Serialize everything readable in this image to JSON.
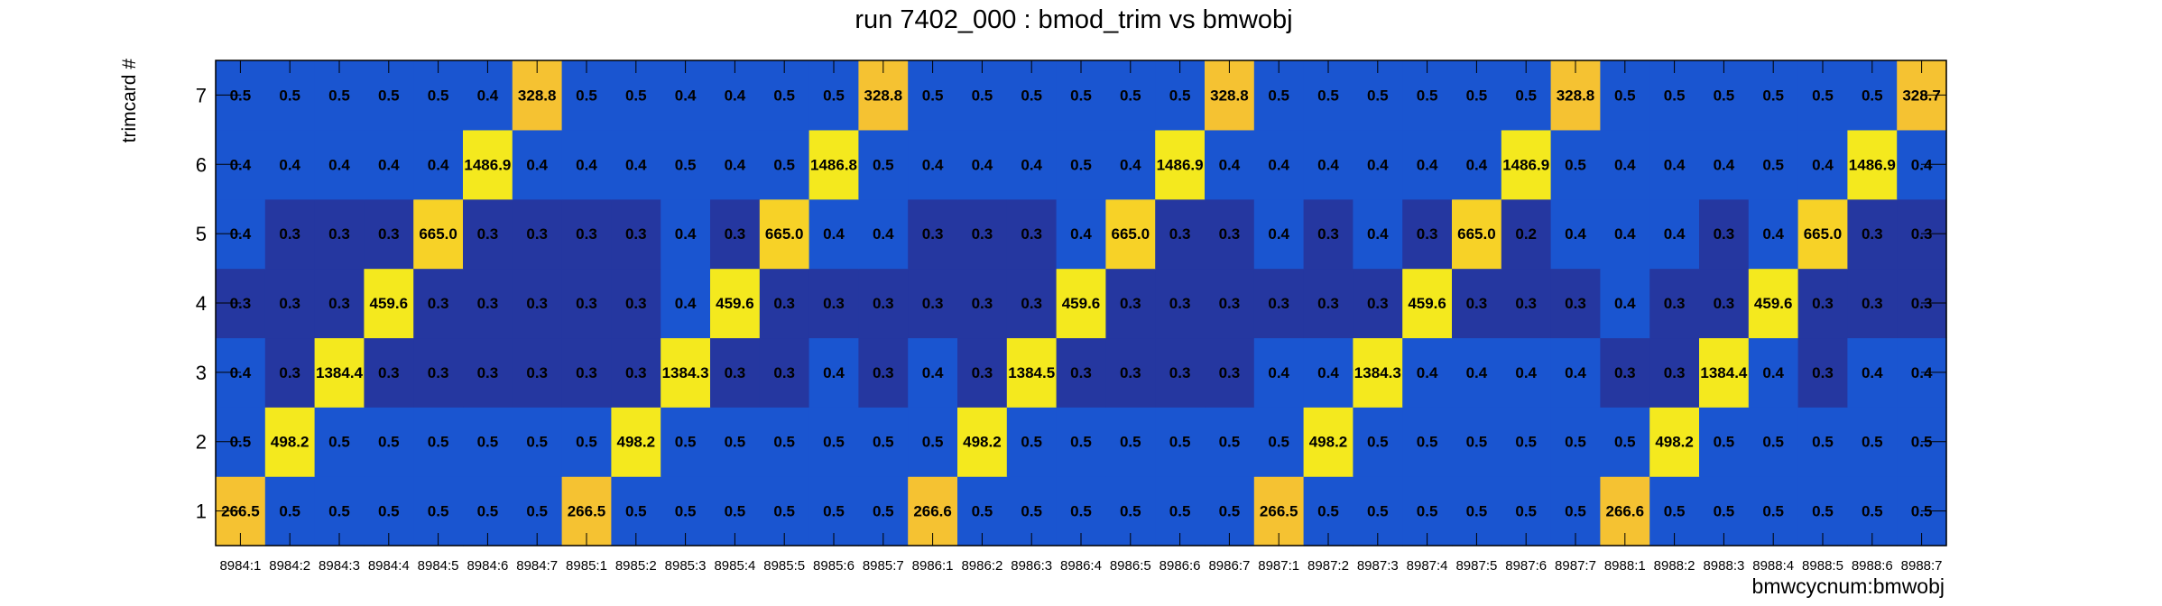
{
  "chart_data": {
    "type": "heatmap",
    "title": "run 7402_000 : bmod_trim vs bmwobj",
    "xlabel": "bmwcycnum:bmwobj",
    "ylabel": "trimcard #",
    "x": [
      "8984:1",
      "8984:2",
      "8984:3",
      "8984:4",
      "8984:5",
      "8984:6",
      "8984:7",
      "8985:1",
      "8985:2",
      "8985:3",
      "8985:4",
      "8985:5",
      "8985:6",
      "8985:7",
      "8986:1",
      "8986:2",
      "8986:3",
      "8986:4",
      "8986:5",
      "8986:6",
      "8986:7",
      "8987:1",
      "8987:2",
      "8987:3",
      "8987:4",
      "8987:5",
      "8987:6",
      "8987:7",
      "8988:1",
      "8988:2",
      "8988:3",
      "8988:4",
      "8988:5",
      "8988:6",
      "8988:7"
    ],
    "y": [
      "1",
      "2",
      "3",
      "4",
      "5",
      "6",
      "7"
    ],
    "values": [
      [
        "266.5",
        "0.5",
        "0.5",
        "0.5",
        "0.5",
        "0.5",
        "0.5",
        "266.5",
        "0.5",
        "0.5",
        "0.5",
        "0.5",
        "0.5",
        "0.5",
        "266.6",
        "0.5",
        "0.5",
        "0.5",
        "0.5",
        "0.5",
        "0.5",
        "266.5",
        "0.5",
        "0.5",
        "0.5",
        "0.5",
        "0.5",
        "0.5",
        "266.6",
        "0.5",
        "0.5",
        "0.5",
        "0.5",
        "0.5",
        "0.5"
      ],
      [
        "0.5",
        "498.2",
        "0.5",
        "0.5",
        "0.5",
        "0.5",
        "0.5",
        "0.5",
        "498.2",
        "0.5",
        "0.5",
        "0.5",
        "0.5",
        "0.5",
        "0.5",
        "498.2",
        "0.5",
        "0.5",
        "0.5",
        "0.5",
        "0.5",
        "0.5",
        "498.2",
        "0.5",
        "0.5",
        "0.5",
        "0.5",
        "0.5",
        "0.5",
        "498.2",
        "0.5",
        "0.5",
        "0.5",
        "0.5",
        "0.5"
      ],
      [
        "0.4",
        "0.3",
        "1384.4",
        "0.3",
        "0.3",
        "0.3",
        "0.3",
        "0.3",
        "0.3",
        "1384.3",
        "0.3",
        "0.3",
        "0.4",
        "0.3",
        "0.4",
        "0.3",
        "1384.5",
        "0.3",
        "0.3",
        "0.3",
        "0.3",
        "0.4",
        "0.4",
        "1384.3",
        "0.4",
        "0.4",
        "0.4",
        "0.4",
        "0.3",
        "0.3",
        "1384.4",
        "0.4",
        "0.3",
        "0.4",
        "0.4"
      ],
      [
        "0.3",
        "0.3",
        "0.3",
        "459.6",
        "0.3",
        "0.3",
        "0.3",
        "0.3",
        "0.3",
        "0.4",
        "459.6",
        "0.3",
        "0.3",
        "0.3",
        "0.3",
        "0.3",
        "0.3",
        "459.6",
        "0.3",
        "0.3",
        "0.3",
        "0.3",
        "0.3",
        "0.3",
        "459.6",
        "0.3",
        "0.3",
        "0.3",
        "0.4",
        "0.3",
        "0.3",
        "459.6",
        "0.3",
        "0.3",
        "0.3"
      ],
      [
        "0.4",
        "0.3",
        "0.3",
        "0.3",
        "665.0",
        "0.3",
        "0.3",
        "0.3",
        "0.3",
        "0.4",
        "0.3",
        "665.0",
        "0.4",
        "0.4",
        "0.3",
        "0.3",
        "0.3",
        "0.4",
        "665.0",
        "0.3",
        "0.3",
        "0.4",
        "0.3",
        "0.4",
        "0.3",
        "665.0",
        "0.2",
        "0.4",
        "0.4",
        "0.4",
        "0.3",
        "0.4",
        "665.0",
        "0.3",
        "0.3"
      ],
      [
        "0.4",
        "0.4",
        "0.4",
        "0.4",
        "0.4",
        "1486.9",
        "0.4",
        "0.4",
        "0.4",
        "0.5",
        "0.4",
        "0.5",
        "1486.8",
        "0.5",
        "0.4",
        "0.4",
        "0.4",
        "0.5",
        "0.4",
        "1486.9",
        "0.4",
        "0.4",
        "0.4",
        "0.4",
        "0.4",
        "0.4",
        "1486.9",
        "0.5",
        "0.4",
        "0.4",
        "0.4",
        "0.5",
        "0.4",
        "1486.9",
        "0.4"
      ],
      [
        "0.5",
        "0.5",
        "0.5",
        "0.5",
        "0.5",
        "0.4",
        "328.8",
        "0.5",
        "0.5",
        "0.4",
        "0.4",
        "0.5",
        "0.5",
        "328.8",
        "0.5",
        "0.5",
        "0.5",
        "0.5",
        "0.5",
        "0.5",
        "328.8",
        "0.5",
        "0.5",
        "0.5",
        "0.5",
        "0.5",
        "0.5",
        "328.8",
        "0.5",
        "0.5",
        "0.5",
        "0.5",
        "0.5",
        "0.5",
        "328.7"
      ]
    ],
    "colors": {
      "zero": "#3f3db5",
      "low": "#2537a0",
      "high": "#1a55d0",
      "peak_yellow": "#f4e91e",
      "peak_gold": "#f5c232",
      "mixed_yellow": "#f7d227"
    },
    "grid": false,
    "legend": "none"
  }
}
